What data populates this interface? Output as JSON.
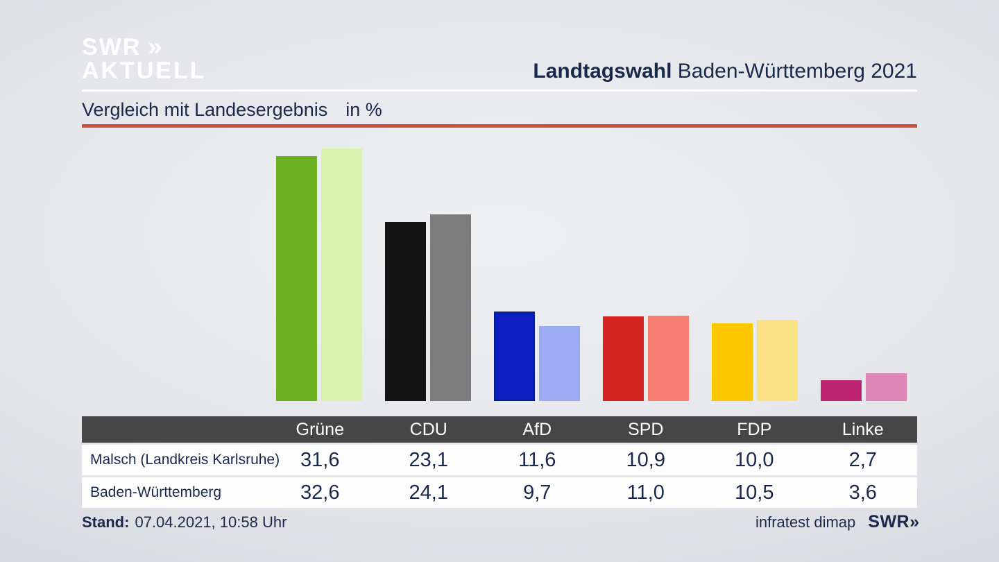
{
  "brand": {
    "logo_line1": "SWR",
    "logo_line2": "AKTUELL",
    "chevrons": "»"
  },
  "header": {
    "title_bold": "Landtagswahl",
    "title_rest": "Baden-Württemberg 2021"
  },
  "subtitle": {
    "text": "Vergleich mit Landesergebnis",
    "unit": "in %"
  },
  "footer": {
    "stand_label": "Stand:",
    "stand_value": "07.04.2021, 10:58 Uhr",
    "source": "infratest dimap",
    "source_logo": "SWR",
    "chevrons": "»"
  },
  "colors": {
    "accent_rule": "#cb513d",
    "navy_text": "#19294b",
    "table_header_bg": "#464646",
    "row_bg": "#fdfdfe"
  },
  "chart_data": {
    "type": "bar",
    "title": "Vergleich mit Landesergebnis",
    "unit": "%",
    "categories": [
      "Grüne",
      "CDU",
      "AfD",
      "SPD",
      "FDP",
      "Linke"
    ],
    "series": [
      {
        "name": "Malsch (Landkreis Karlsruhe)",
        "values": [
          31.6,
          23.1,
          11.6,
          10.9,
          10.0,
          2.7
        ]
      },
      {
        "name": "Baden-Württemberg",
        "values": [
          32.6,
          24.1,
          9.7,
          11.0,
          10.5,
          3.6
        ]
      }
    ],
    "party_colors": [
      {
        "main": "#6cb121",
        "light": "#d9f2ad"
      },
      {
        "main": "#141414",
        "light": "#7c7c7c"
      },
      {
        "main": "#0c20c2",
        "light": "#9cabf3",
        "main_border": "#081a86"
      },
      {
        "main": "#d32220",
        "light": "#f97f73"
      },
      {
        "main": "#fcc600",
        "light": "#fae284"
      },
      {
        "main": "#c02573",
        "light": "#de86b8"
      }
    ],
    "ylim": [
      0,
      35
    ],
    "grid": false,
    "legend_position": "table-below",
    "value_format": "decimal-comma"
  }
}
